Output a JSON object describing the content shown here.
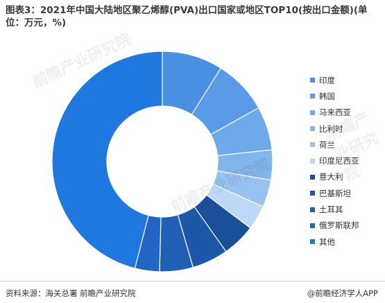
{
  "title": "图表3：2021年中国大陆地区聚乙烯醇(PVA)出口国家或地区TOP10(按出口金额)(单位：万元，%)",
  "source": "资料来源：海关总署 前瞻产业研究院",
  "brand": "@前瞻经济学人APP",
  "watermark": "前瞻产业研究院",
  "chart_data": {
    "type": "pie",
    "donut": true,
    "legend_position": "right",
    "labels": [
      "印度",
      "韩国",
      "马来西亚",
      "比利时",
      "荷兰",
      "印度尼西亚",
      "意大利",
      "巴基斯坦",
      "土耳其",
      "俄罗斯联邦",
      "其他"
    ],
    "values": [
      8.9,
      8.0,
      6.4,
      4.4,
      4.0,
      3.6,
      4.9,
      5.3,
      4.9,
      3.6,
      46.0
    ],
    "colors": [
      "#4a90e2",
      "#5b9ae6",
      "#6ea9ea",
      "#82b5ec",
      "#98c3f0",
      "#bcd8f6",
      "#1a4f9a",
      "#1c57a8",
      "#1f5fb6",
      "#2166c4",
      "#1e78e0"
    ]
  }
}
